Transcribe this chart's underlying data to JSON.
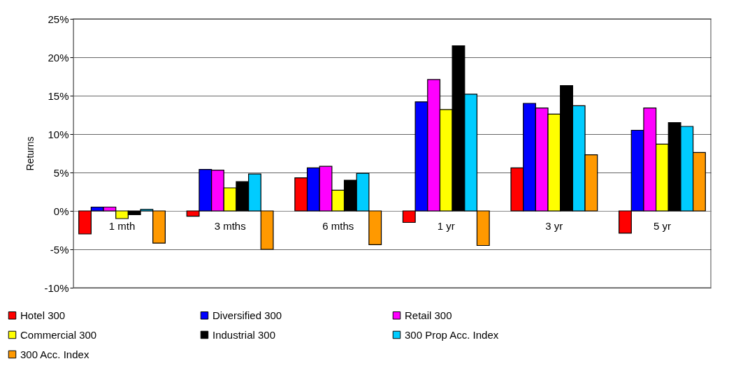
{
  "chart_data": {
    "type": "bar",
    "ylabel": "Returns",
    "categories": [
      "1 mth",
      "3 mths",
      "6 mths",
      "1 yr",
      "3 yr",
      "5 yr"
    ],
    "series": [
      {
        "name": "Hotel 300",
        "color": "#ff0000",
        "values": [
          -3.0,
          -0.7,
          4.3,
          -1.5,
          5.6,
          -2.9
        ]
      },
      {
        "name": "Diversified 300",
        "color": "#0000ff",
        "values": [
          0.5,
          5.4,
          5.6,
          14.2,
          14.0,
          10.5
        ]
      },
      {
        "name": "Retail 300",
        "color": "#ff00ff",
        "values": [
          0.5,
          5.3,
          5.8,
          17.1,
          13.4,
          13.4
        ]
      },
      {
        "name": "Commercial 300",
        "color": "#ffff00",
        "values": [
          -1.0,
          3.0,
          2.7,
          13.2,
          12.6,
          8.7
        ]
      },
      {
        "name": "Industrial 300",
        "color": "#000000",
        "values": [
          -0.5,
          3.8,
          4.0,
          21.5,
          16.3,
          11.5
        ]
      },
      {
        "name": "300 Prop Acc. Index",
        "color": "#00ccff",
        "values": [
          0.2,
          4.8,
          4.9,
          15.2,
          13.7,
          11.0
        ]
      },
      {
        "name": "300 Acc. Index",
        "color": "#ff9900",
        "values": [
          -4.2,
          -5.0,
          -4.4,
          -4.5,
          7.3,
          7.6
        ]
      }
    ],
    "ylim": [
      -10,
      25
    ],
    "yticks": [
      {
        "value": -10,
        "label": "-10%"
      },
      {
        "value": -5,
        "label": "-5%"
      },
      {
        "value": 0,
        "label": "0%"
      },
      {
        "value": 5,
        "label": "5%"
      },
      {
        "value": 10,
        "label": "10%"
      },
      {
        "value": 15,
        "label": "15%"
      },
      {
        "value": 20,
        "label": "20%"
      },
      {
        "value": 25,
        "label": "25%"
      }
    ],
    "grid": "y",
    "legend": "bottom"
  }
}
